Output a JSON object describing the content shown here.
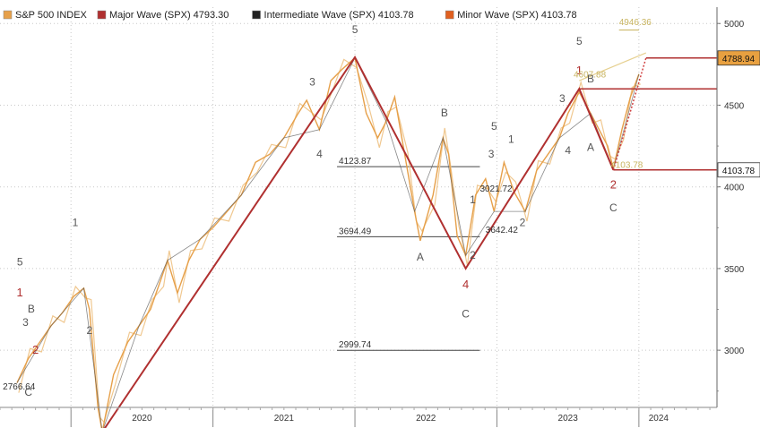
{
  "chart_data": {
    "type": "line",
    "title": "",
    "legend": [
      {
        "name": "S&P 500 INDEX",
        "color": "#e6a04a"
      },
      {
        "name": "Major Wave (SPX)",
        "value": "4793.30",
        "color": "#b03030"
      },
      {
        "name": "Intermediate Wave (SPX)",
        "value": "4103.78",
        "color": "#222222"
      },
      {
        "name": "Minor Wave (SPX)",
        "value": "4103.78",
        "color": "#e06020"
      }
    ],
    "y_axis": {
      "ticks": [
        "5000",
        "4500",
        "4000",
        "3500",
        "3000"
      ],
      "range": [
        2650,
        5100
      ]
    },
    "x_axis": {
      "years": [
        "2020",
        "2021",
        "2022",
        "2023",
        "2024"
      ],
      "range": [
        2019.5,
        2024.55
      ]
    },
    "series": [
      {
        "name": "S&P 500 INDEX",
        "values": [
          [
            2019.62,
            2800
          ],
          [
            2019.7,
            2950
          ],
          [
            2019.78,
            3050
          ],
          [
            2019.86,
            3150
          ],
          [
            2019.94,
            3230
          ],
          [
            2020.02,
            3330
          ],
          [
            2020.09,
            3380
          ],
          [
            2020.13,
            3250
          ],
          [
            2020.19,
            2650
          ],
          [
            2020.22,
            2500
          ],
          [
            2020.3,
            2850
          ],
          [
            2020.4,
            3050
          ],
          [
            2020.48,
            3150
          ],
          [
            2020.56,
            3250
          ],
          [
            2020.64,
            3450
          ],
          [
            2020.68,
            3550
          ],
          [
            2020.75,
            3350
          ],
          [
            2020.83,
            3550
          ],
          [
            2020.91,
            3680
          ],
          [
            2021.0,
            3750
          ],
          [
            2021.1,
            3850
          ],
          [
            2021.2,
            3950
          ],
          [
            2021.3,
            4150
          ],
          [
            2021.4,
            4200
          ],
          [
            2021.5,
            4300
          ],
          [
            2021.6,
            4450
          ],
          [
            2021.66,
            4530
          ],
          [
            2021.75,
            4350
          ],
          [
            2021.83,
            4650
          ],
          [
            2021.91,
            4720
          ],
          [
            2022.0,
            4790
          ],
          [
            2022.08,
            4450
          ],
          [
            2022.16,
            4300
          ],
          [
            2022.22,
            4400
          ],
          [
            2022.28,
            4550
          ],
          [
            2022.36,
            4150
          ],
          [
            2022.42,
            3850
          ],
          [
            2022.46,
            3670
          ],
          [
            2022.55,
            3950
          ],
          [
            2022.62,
            4300
          ],
          [
            2022.66,
            4200
          ],
          [
            2022.72,
            3700
          ],
          [
            2022.78,
            3580
          ],
          [
            2022.85,
            3950
          ],
          [
            2022.92,
            4050
          ],
          [
            2022.98,
            3850
          ],
          [
            2023.05,
            4150
          ],
          [
            2023.12,
            3970
          ],
          [
            2023.2,
            3850
          ],
          [
            2023.28,
            4100
          ],
          [
            2023.36,
            4200
          ],
          [
            2023.44,
            4300
          ],
          [
            2023.5,
            4450
          ],
          [
            2023.58,
            4580
          ],
          [
            2023.66,
            4450
          ],
          [
            2023.72,
            4350
          ],
          [
            2023.78,
            4250
          ],
          [
            2023.82,
            4110
          ],
          [
            2023.88,
            4350
          ],
          [
            2023.94,
            4550
          ],
          [
            2024.0,
            4690
          ]
        ]
      },
      {
        "name": "Major Wave (SPX)",
        "values": [
          [
            2020.22,
            2500
          ],
          [
            2022.0,
            4793
          ],
          [
            2022.78,
            3500
          ],
          [
            2023.58,
            4600
          ],
          [
            2023.82,
            4103
          ],
          [
            2024.05,
            4789
          ]
        ]
      }
    ],
    "levels": [
      {
        "label": "4123.87",
        "value": 4123.87,
        "x_from": 2022.0,
        "x_to": 2022.88
      },
      {
        "label": "3694.49",
        "value": 3694.49,
        "x_from": 2022.0,
        "x_to": 2022.88
      },
      {
        "label": "2999.74",
        "value": 2999.74,
        "x_from": 2022.0,
        "x_to": 2022.88
      }
    ],
    "right_tags": [
      {
        "label": "4788.94",
        "value": 4788.94,
        "style": "orange"
      },
      {
        "label": "4103.78",
        "value": 4103.78,
        "style": "white"
      }
    ],
    "wave_labels": [
      {
        "text": "5",
        "x": 2019.64,
        "y": 3520,
        "style": "gray"
      },
      {
        "text": "1",
        "x": 2019.64,
        "y": 3330,
        "style": "red"
      },
      {
        "text": "3",
        "x": 2019.68,
        "y": 3150,
        "style": "gray"
      },
      {
        "text": "B",
        "x": 2019.72,
        "y": 3230,
        "style": "gray"
      },
      {
        "text": "2",
        "x": 2019.75,
        "y": 2980,
        "style": "red"
      },
      {
        "text": "C",
        "x": 2019.7,
        "y": 2720,
        "style": "gray"
      },
      {
        "text": "1",
        "x": 2020.03,
        "y": 3760,
        "style": "gray"
      },
      {
        "text": "2",
        "x": 2020.13,
        "y": 3100,
        "style": "gray"
      },
      {
        "text": "3",
        "x": 2021.7,
        "y": 4620,
        "style": "gray"
      },
      {
        "text": "4",
        "x": 2021.75,
        "y": 4180,
        "style": "gray"
      },
      {
        "text": "5",
        "x": 2022.0,
        "y": 4940,
        "style": "gray"
      },
      {
        "text": "A",
        "x": 2022.46,
        "y": 3550,
        "style": "gray"
      },
      {
        "text": "B",
        "x": 2022.63,
        "y": 4430,
        "style": "gray"
      },
      {
        "text": "4",
        "x": 2022.78,
        "y": 3380,
        "style": "red"
      },
      {
        "text": "C",
        "x": 2022.78,
        "y": 3200,
        "style": "gray"
      },
      {
        "text": "5",
        "x": 2022.98,
        "y": 4350,
        "style": "gray"
      },
      {
        "text": "3",
        "x": 2022.96,
        "y": 4180,
        "style": "gray"
      },
      {
        "text": "1",
        "x": 2022.83,
        "y": 3900,
        "style": "gray"
      },
      {
        "text": "2",
        "x": 2022.83,
        "y": 3560,
        "style": "gray"
      },
      {
        "text": "1",
        "x": 2023.1,
        "y": 4270,
        "style": "gray"
      },
      {
        "text": "2",
        "x": 2023.18,
        "y": 3760,
        "style": "gray"
      },
      {
        "text": "3",
        "x": 2023.46,
        "y": 4520,
        "style": "gray"
      },
      {
        "text": "4",
        "x": 2023.5,
        "y": 4200,
        "style": "gray"
      },
      {
        "text": "5",
        "x": 2023.58,
        "y": 4870,
        "style": "gray"
      },
      {
        "text": "1",
        "x": 2023.58,
        "y": 4690,
        "style": "red"
      },
      {
        "text": "B",
        "x": 2023.66,
        "y": 4640,
        "style": "gray"
      },
      {
        "text": "A",
        "x": 2023.66,
        "y": 4220,
        "style": "gray"
      },
      {
        "text": "2",
        "x": 2023.82,
        "y": 3990,
        "style": "red"
      },
      {
        "text": "C",
        "x": 2023.82,
        "y": 3850,
        "style": "gray"
      }
    ],
    "annotations": [
      {
        "text": "2766.64",
        "x": 2019.52,
        "y": 2760,
        "style": "dark"
      },
      {
        "text": "3021.72",
        "x": 2022.88,
        "y": 3970,
        "style": "dark"
      },
      {
        "text": "3642.42",
        "x": 2022.92,
        "y": 3720,
        "style": "dark"
      },
      {
        "text": "4946.36",
        "x": 2023.86,
        "y": 4990,
        "style": "light"
      },
      {
        "text": "4607.88",
        "x": 2023.54,
        "y": 4670,
        "style": "light"
      },
      {
        "text": "4103.78",
        "x": 2023.8,
        "y": 4115,
        "style": "light"
      }
    ]
  }
}
